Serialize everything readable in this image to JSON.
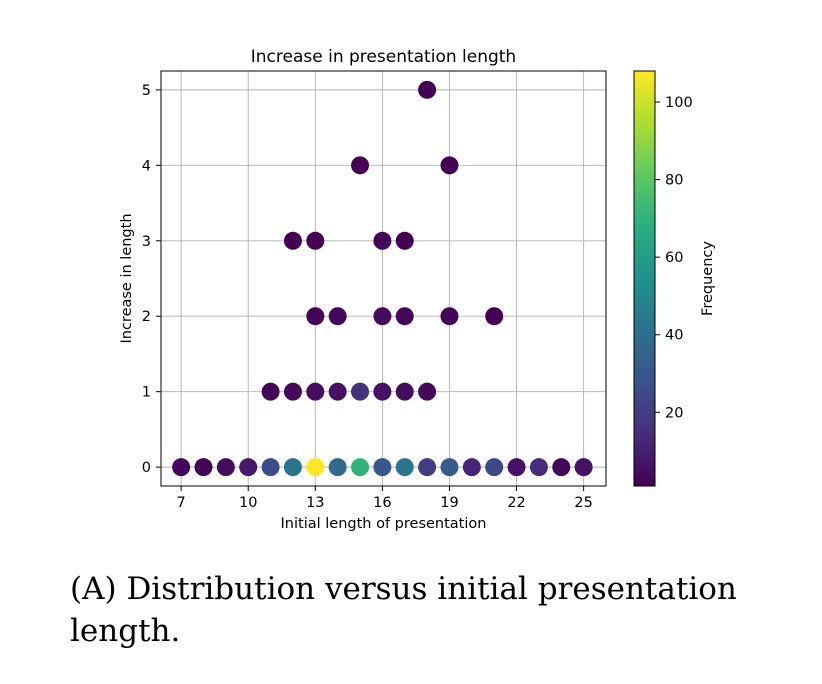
{
  "chart_data": {
    "type": "scatter",
    "title": "Increase in presentation length",
    "xlabel": "Initial length of presentation",
    "ylabel": "Increase in length",
    "xlim": [
      6.1,
      26.0
    ],
    "ylim": [
      -0.25,
      5.25
    ],
    "xticks": [
      7,
      10,
      13,
      16,
      19,
      22,
      25
    ],
    "yticks": [
      0,
      1,
      2,
      3,
      4,
      5
    ],
    "grid": true,
    "colormap": "viridis",
    "colorbar": {
      "label": "Frequency",
      "range": [
        1,
        108
      ],
      "ticks": [
        20,
        40,
        60,
        80,
        100
      ]
    },
    "points": [
      {
        "x": 7,
        "y": 0,
        "frequency": 2
      },
      {
        "x": 8,
        "y": 0,
        "frequency": 2
      },
      {
        "x": 9,
        "y": 0,
        "frequency": 4
      },
      {
        "x": 10,
        "y": 0,
        "frequency": 8
      },
      {
        "x": 11,
        "y": 0,
        "frequency": 26
      },
      {
        "x": 12,
        "y": 0,
        "frequency": 42
      },
      {
        "x": 13,
        "y": 0,
        "frequency": 108
      },
      {
        "x": 14,
        "y": 0,
        "frequency": 38
      },
      {
        "x": 15,
        "y": 0,
        "frequency": 70
      },
      {
        "x": 16,
        "y": 0,
        "frequency": 30
      },
      {
        "x": 17,
        "y": 0,
        "frequency": 42
      },
      {
        "x": 18,
        "y": 0,
        "frequency": 20
      },
      {
        "x": 19,
        "y": 0,
        "frequency": 32
      },
      {
        "x": 20,
        "y": 0,
        "frequency": 12
      },
      {
        "x": 21,
        "y": 0,
        "frequency": 24
      },
      {
        "x": 22,
        "y": 0,
        "frequency": 6
      },
      {
        "x": 23,
        "y": 0,
        "frequency": 14
      },
      {
        "x": 24,
        "y": 0,
        "frequency": 3
      },
      {
        "x": 25,
        "y": 0,
        "frequency": 6
      },
      {
        "x": 11,
        "y": 1,
        "frequency": 2
      },
      {
        "x": 12,
        "y": 1,
        "frequency": 3
      },
      {
        "x": 13,
        "y": 1,
        "frequency": 5
      },
      {
        "x": 14,
        "y": 1,
        "frequency": 6
      },
      {
        "x": 15,
        "y": 1,
        "frequency": 16
      },
      {
        "x": 16,
        "y": 1,
        "frequency": 6
      },
      {
        "x": 17,
        "y": 1,
        "frequency": 4
      },
      {
        "x": 18,
        "y": 1,
        "frequency": 3
      },
      {
        "x": 13,
        "y": 2,
        "frequency": 2
      },
      {
        "x": 14,
        "y": 2,
        "frequency": 3
      },
      {
        "x": 16,
        "y": 2,
        "frequency": 4
      },
      {
        "x": 17,
        "y": 2,
        "frequency": 3
      },
      {
        "x": 19,
        "y": 2,
        "frequency": 2
      },
      {
        "x": 21,
        "y": 2,
        "frequency": 1
      },
      {
        "x": 12,
        "y": 3,
        "frequency": 1
      },
      {
        "x": 13,
        "y": 3,
        "frequency": 1
      },
      {
        "x": 16,
        "y": 3,
        "frequency": 2
      },
      {
        "x": 17,
        "y": 3,
        "frequency": 1
      },
      {
        "x": 15,
        "y": 4,
        "frequency": 1
      },
      {
        "x": 19,
        "y": 4,
        "frequency": 1
      },
      {
        "x": 18,
        "y": 5,
        "frequency": 1
      }
    ]
  },
  "caption": {
    "label": "(A)",
    "text": "Distribution versus initial presentation length."
  }
}
